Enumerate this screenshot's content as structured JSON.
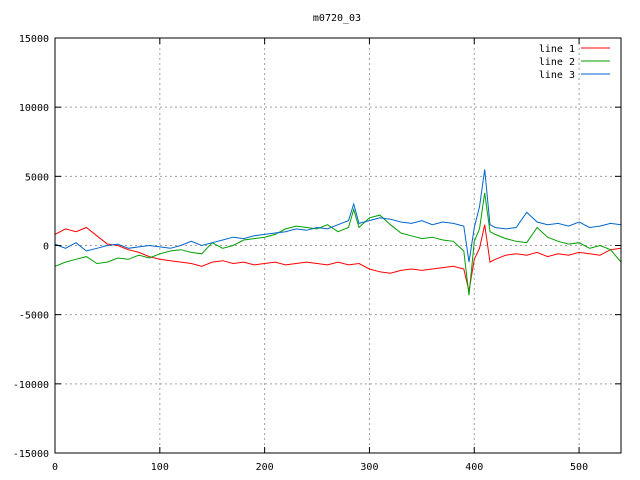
{
  "chart_data": {
    "type": "line",
    "title": "m0720_03",
    "xlabel": "",
    "ylabel": "",
    "xlim": [
      0,
      540
    ],
    "ylim": [
      -15000,
      15000
    ],
    "x_ticks": [
      0,
      100,
      200,
      300,
      400,
      500
    ],
    "y_ticks": [
      -15000,
      -10000,
      -5000,
      0,
      5000,
      10000,
      15000
    ],
    "grid": true,
    "legend_position": "top-right",
    "series": [
      {
        "name": "line 1",
        "color": "#ff0000",
        "x": [
          0,
          10,
          20,
          30,
          40,
          50,
          60,
          70,
          80,
          90,
          100,
          110,
          120,
          130,
          140,
          150,
          160,
          170,
          180,
          190,
          200,
          210,
          220,
          230,
          240,
          250,
          260,
          270,
          280,
          290,
          300,
          310,
          320,
          330,
          340,
          350,
          360,
          370,
          380,
          390,
          395,
          400,
          405,
          410,
          415,
          420,
          430,
          440,
          450,
          460,
          470,
          480,
          490,
          500,
          510,
          520,
          530,
          540
        ],
        "values": [
          800,
          1200,
          1000,
          1300,
          700,
          100,
          0,
          -300,
          -500,
          -800,
          -1000,
          -1100,
          -1200,
          -1300,
          -1500,
          -1200,
          -1100,
          -1300,
          -1200,
          -1400,
          -1300,
          -1200,
          -1400,
          -1300,
          -1200,
          -1300,
          -1400,
          -1200,
          -1400,
          -1300,
          -1700,
          -1900,
          -2000,
          -1800,
          -1700,
          -1800,
          -1700,
          -1600,
          -1500,
          -1700,
          -3300,
          -1000,
          -200,
          1500,
          -1200,
          -1000,
          -700,
          -600,
          -700,
          -500,
          -800,
          -600,
          -700,
          -500,
          -600,
          -700,
          -300,
          -200
        ]
      },
      {
        "name": "line 2",
        "color": "#00a000",
        "x": [
          0,
          10,
          20,
          30,
          40,
          50,
          60,
          70,
          80,
          90,
          100,
          110,
          120,
          130,
          140,
          150,
          160,
          170,
          180,
          190,
          200,
          210,
          220,
          230,
          240,
          250,
          260,
          270,
          280,
          285,
          290,
          300,
          310,
          320,
          330,
          340,
          350,
          360,
          370,
          380,
          390,
          395,
          400,
          405,
          410,
          415,
          420,
          430,
          440,
          450,
          460,
          470,
          480,
          490,
          500,
          510,
          520,
          530,
          540
        ],
        "values": [
          -1500,
          -1200,
          -1000,
          -800,
          -1300,
          -1200,
          -900,
          -1000,
          -700,
          -900,
          -600,
          -400,
          -300,
          -500,
          -600,
          200,
          -200,
          0,
          400,
          500,
          600,
          800,
          1200,
          1400,
          1300,
          1200,
          1500,
          1000,
          1300,
          2600,
          1300,
          2000,
          2200,
          1500,
          900,
          700,
          500,
          600,
          400,
          300,
          -400,
          -3600,
          300,
          1200,
          3800,
          1000,
          800,
          500,
          300,
          200,
          1300,
          600,
          300,
          100,
          200,
          -200,
          0,
          -300,
          -1200
        ]
      },
      {
        "name": "line 3",
        "color": "#0066cc",
        "x": [
          0,
          10,
          20,
          30,
          40,
          50,
          60,
          70,
          80,
          90,
          100,
          110,
          120,
          130,
          140,
          150,
          160,
          170,
          180,
          190,
          200,
          210,
          220,
          230,
          240,
          250,
          260,
          270,
          280,
          285,
          290,
          300,
          310,
          320,
          330,
          340,
          350,
          360,
          370,
          380,
          390,
          395,
          400,
          405,
          410,
          415,
          420,
          430,
          440,
          450,
          460,
          470,
          480,
          490,
          500,
          510,
          520,
          530,
          540
        ],
        "values": [
          100,
          -200,
          200,
          -400,
          -200,
          0,
          100,
          -200,
          -100,
          0,
          -100,
          -200,
          0,
          300,
          0,
          200,
          400,
          600,
          500,
          700,
          800,
          900,
          1000,
          1200,
          1100,
          1300,
          1200,
          1500,
          1800,
          3000,
          1600,
          1800,
          2000,
          1900,
          1700,
          1600,
          1800,
          1500,
          1700,
          1600,
          1400,
          -1200,
          1300,
          2800,
          5500,
          1500,
          1300,
          1200,
          1300,
          2400,
          1700,
          1500,
          1600,
          1400,
          1700,
          1300,
          1400,
          1600,
          1500
        ]
      }
    ]
  }
}
